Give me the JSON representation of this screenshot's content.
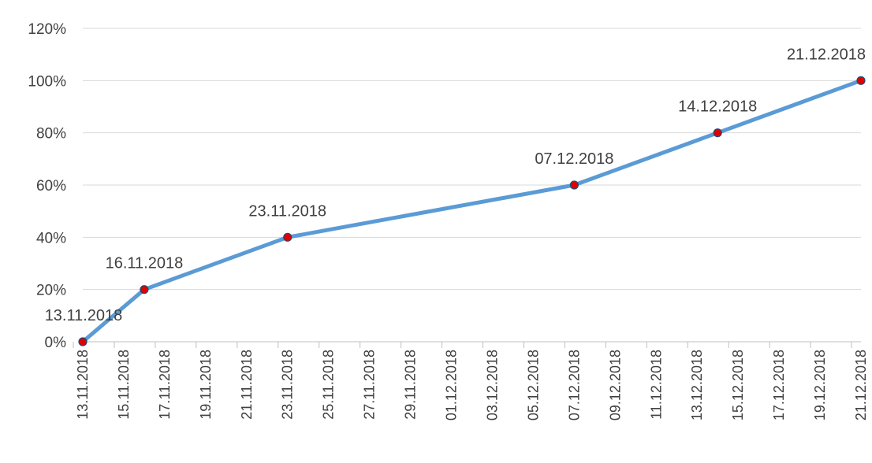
{
  "chart_data": {
    "type": "line",
    "title": "",
    "xlabel": "",
    "ylabel": "",
    "ylim": [
      0,
      120
    ],
    "yticks": [
      "0%",
      "20%",
      "40%",
      "60%",
      "80%",
      "100%",
      "120%"
    ],
    "xlim": [
      "13.11.2018",
      "21.12.2018"
    ],
    "xticks": [
      "13.11.2018",
      "15.11.2018",
      "17.11.2018",
      "19.11.2018",
      "21.11.2018",
      "23.11.2018",
      "25.11.2018",
      "27.11.2018",
      "29.11.2018",
      "01.12.2018",
      "03.12.2018",
      "05.12.2018",
      "07.12.2018",
      "09.12.2018",
      "11.12.2018",
      "13.12.2018",
      "15.12.2018",
      "17.12.2018",
      "19.12.2018",
      "21.12.2018"
    ],
    "grid": "horizontal",
    "legend": "none",
    "series": [
      {
        "color": "#5B9BD5",
        "marker_color": "#E00000",
        "points": [
          {
            "x": "13.11.2018",
            "y": 0,
            "label": "13.11.2018"
          },
          {
            "x": "16.11.2018",
            "y": 20,
            "label": "16.11.2018"
          },
          {
            "x": "23.11.2018",
            "y": 40,
            "label": "23.11.2018"
          },
          {
            "x": "07.12.2018",
            "y": 60,
            "label": "07.12.2018"
          },
          {
            "x": "14.12.2018",
            "y": 80,
            "label": "14.12.2018"
          },
          {
            "x": "21.12.2018",
            "y": 100,
            "label": "21.12.2018"
          }
        ]
      }
    ]
  }
}
